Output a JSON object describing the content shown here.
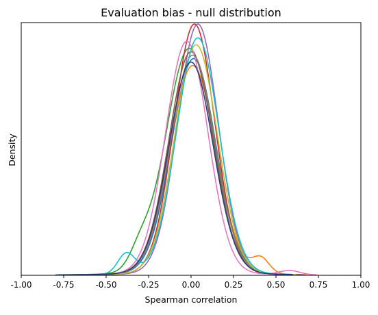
{
  "chart_data": {
    "type": "line",
    "title": "Evaluation bias - null distribution",
    "xlabel": "Spearman correlation",
    "ylabel": "Density",
    "xlim": [
      -1.0,
      1.0
    ],
    "ylim": [
      0,
      3.65
    ],
    "xticks": [
      "-1.00",
      "-0.75",
      "-0.50",
      "-0.25",
      "0.00",
      "0.25",
      "0.50",
      "0.75",
      "1.00"
    ],
    "yticks": [],
    "grid": false,
    "legend": "none",
    "series": [
      {
        "color": "#1f77b4",
        "mean": 0.015,
        "sd": 0.13,
        "peak": 3.1,
        "range": [
          -0.7,
          0.65
        ]
      },
      {
        "color": "#ff7f0e",
        "mean": 0.01,
        "sd": 0.135,
        "peak": 3.0,
        "range": [
          -0.75,
          0.68
        ],
        "bump": {
          "at": 0.41,
          "h": 0.22,
          "w": 0.05
        }
      },
      {
        "color": "#2ca02c",
        "mean": -0.01,
        "sd": 0.14,
        "peak": 3.25,
        "range": [
          -0.78,
          0.6
        ],
        "bump": {
          "at": -0.3,
          "h": 0.25,
          "w": 0.06
        }
      },
      {
        "color": "#d62728",
        "mean": 0.02,
        "sd": 0.12,
        "peak": 3.6,
        "range": [
          -0.6,
          0.65
        ]
      },
      {
        "color": "#9467bd",
        "mean": 0.04,
        "sd": 0.12,
        "peak": 3.6,
        "range": [
          -0.65,
          0.6
        ]
      },
      {
        "color": "#8c564b",
        "mean": 0.0,
        "sd": 0.13,
        "peak": 3.2,
        "range": [
          -0.7,
          0.66
        ]
      },
      {
        "color": "#e377c2",
        "mean": -0.025,
        "sd": 0.125,
        "peak": 3.35,
        "range": [
          -0.62,
          0.74
        ],
        "bump": {
          "at": 0.58,
          "h": 0.06,
          "w": 0.06
        }
      },
      {
        "color": "#7f7f7f",
        "mean": 0.01,
        "sd": 0.13,
        "peak": 3.15,
        "range": [
          -0.66,
          0.66
        ]
      },
      {
        "color": "#bcbd22",
        "mean": 0.03,
        "sd": 0.125,
        "peak": 3.3,
        "range": [
          -0.66,
          0.62
        ]
      },
      {
        "color": "#17becf",
        "mean": 0.04,
        "sd": 0.125,
        "peak": 3.4,
        "range": [
          -0.72,
          0.6
        ],
        "bump": {
          "at": -0.38,
          "h": 0.3,
          "w": 0.05
        }
      },
      {
        "color": "#2a3f7a",
        "mean": 0.0,
        "sd": 0.13,
        "peak": 3.05,
        "range": [
          -0.8,
          0.6
        ]
      }
    ]
  }
}
